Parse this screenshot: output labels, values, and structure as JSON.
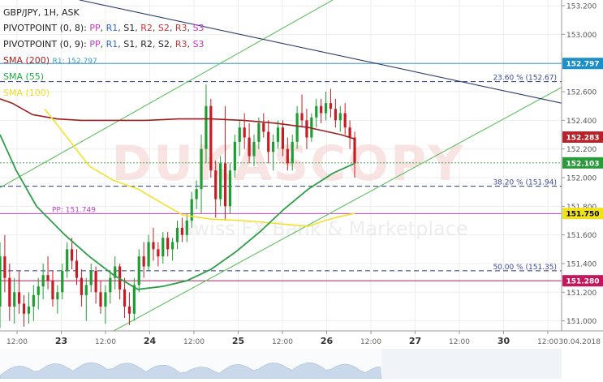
{
  "header": {
    "title": "GBP/JPY, 1H, ASK",
    "legend": [
      {
        "label": "PIVOTPOINT (0, 8):",
        "parts": [
          {
            "text": "PP",
            "color": "#cc33cc"
          },
          {
            "text": "R1",
            "color": "#3366cc"
          },
          {
            "text": "S1",
            "color": "#222222"
          },
          {
            "text": "R2",
            "color": "#cc3333"
          },
          {
            "text": "S2",
            "color": "#cc3333"
          },
          {
            "text": "R3",
            "color": "#cc3333"
          },
          {
            "text": "S3",
            "color": "#cc33cc"
          }
        ]
      },
      {
        "label": "PIVOTPOINT (0, 9):",
        "parts": [
          {
            "text": "PP",
            "color": "#cc33cc"
          },
          {
            "text": "R1",
            "color": "#3366cc"
          },
          {
            "text": "S1",
            "color": "#222222"
          },
          {
            "text": "R2",
            "color": "#222222"
          },
          {
            "text": "S2",
            "color": "#222222"
          },
          {
            "text": "R3",
            "color": "#cc3333"
          },
          {
            "text": "S3",
            "color": "#cc33cc"
          }
        ]
      }
    ],
    "sma200": {
      "text": "SMA (200)",
      "color": "#aa2222"
    },
    "r1_label": {
      "text": "R1: 152.797",
      "color": "#3399cc"
    },
    "sma55": {
      "text": "SMA (55)",
      "color": "#22aa44"
    },
    "sma100": {
      "text": "SMA (100)",
      "color": "#eedd22"
    }
  },
  "watermark": "DUKASCOPY",
  "watermark_sub": "Swiss FX Bank & Marketplace",
  "levels": {
    "fib_236": {
      "text": "23.60 % (152.67)",
      "value": 152.67
    },
    "fib_382": {
      "text": "38.20 % (151.94)",
      "value": 151.94
    },
    "fib_500": {
      "text": "50.00 % (151.35)",
      "value": 151.35
    },
    "pp": {
      "text": "PP: 151.749",
      "value": 151.749
    },
    "r1": {
      "value": 152.797
    }
  },
  "price_badges": [
    {
      "text": "152.797",
      "value": 152.797,
      "bg": "#1a8fc9"
    },
    {
      "text": "152.283",
      "value": 152.283,
      "bg": "#b5232b"
    },
    {
      "text": "152.103",
      "value": 152.103,
      "bg": "#2a9a3a"
    },
    {
      "text": "151.750",
      "value": 151.75,
      "bg": "#f0e11c",
      "fg": "#000000"
    },
    {
      "text": "151.280",
      "value": 151.28,
      "bg": "#c2185b"
    }
  ],
  "chart_data": {
    "type": "candlestick",
    "title": "GBP/JPY, 1H, ASK",
    "yticks": [
      "153.200",
      "153.000",
      "152.800",
      "152.600",
      "152.400",
      "152.200",
      "152.000",
      "151.800",
      "151.600",
      "151.400",
      "151.200",
      "151.000"
    ],
    "ylim": [
      150.93,
      153.24
    ],
    "xticks": [
      {
        "label": "12:00",
        "bold": false
      },
      {
        "label": "23",
        "bold": true
      },
      {
        "label": "12:00",
        "bold": false
      },
      {
        "label": "24",
        "bold": true
      },
      {
        "label": "12:00",
        "bold": false
      },
      {
        "label": "25",
        "bold": true
      },
      {
        "label": "12:00",
        "bold": false
      },
      {
        "label": "26",
        "bold": true
      },
      {
        "label": "12:00",
        "bold": false
      },
      {
        "label": "27",
        "bold": true
      },
      {
        "label": "12:00",
        "bold": false
      },
      {
        "label": "30",
        "bold": true
      },
      {
        "label": "12:00",
        "bold": false
      },
      {
        "label": "30.04.2018",
        "bold": false
      }
    ],
    "candles": [
      {
        "o": 151.1,
        "h": 151.55,
        "l": 150.95,
        "c": 151.45
      },
      {
        "o": 151.45,
        "h": 151.6,
        "l": 151.2,
        "c": 151.3
      },
      {
        "o": 151.3,
        "h": 151.4,
        "l": 151.0,
        "c": 151.1
      },
      {
        "o": 151.1,
        "h": 151.3,
        "l": 150.98,
        "c": 151.2
      },
      {
        "o": 151.2,
        "h": 151.35,
        "l": 151.05,
        "c": 151.12
      },
      {
        "o": 151.12,
        "h": 151.18,
        "l": 150.96,
        "c": 151.05
      },
      {
        "o": 151.05,
        "h": 151.2,
        "l": 150.98,
        "c": 151.1
      },
      {
        "o": 151.1,
        "h": 151.25,
        "l": 151.0,
        "c": 151.18
      },
      {
        "o": 151.18,
        "h": 151.3,
        "l": 151.08,
        "c": 151.24
      },
      {
        "o": 151.24,
        "h": 151.4,
        "l": 151.15,
        "c": 151.32
      },
      {
        "o": 151.32,
        "h": 151.45,
        "l": 151.22,
        "c": 151.28
      },
      {
        "o": 151.28,
        "h": 151.35,
        "l": 151.1,
        "c": 151.15
      },
      {
        "o": 151.15,
        "h": 151.25,
        "l": 151.05,
        "c": 151.2
      },
      {
        "o": 151.2,
        "h": 151.4,
        "l": 151.15,
        "c": 151.35
      },
      {
        "o": 151.35,
        "h": 151.55,
        "l": 151.3,
        "c": 151.5
      },
      {
        "o": 151.5,
        "h": 151.58,
        "l": 151.36,
        "c": 151.42
      },
      {
        "o": 151.42,
        "h": 151.5,
        "l": 151.25,
        "c": 151.3
      },
      {
        "o": 151.3,
        "h": 151.36,
        "l": 151.1,
        "c": 151.18
      },
      {
        "o": 151.18,
        "h": 151.3,
        "l": 151.0,
        "c": 151.25
      },
      {
        "o": 151.25,
        "h": 151.4,
        "l": 151.2,
        "c": 151.35
      },
      {
        "o": 151.35,
        "h": 151.38,
        "l": 151.12,
        "c": 151.2
      },
      {
        "o": 151.2,
        "h": 151.28,
        "l": 151.05,
        "c": 151.1
      },
      {
        "o": 151.1,
        "h": 151.25,
        "l": 150.98,
        "c": 151.2
      },
      {
        "o": 151.2,
        "h": 151.35,
        "l": 151.12,
        "c": 151.3
      },
      {
        "o": 151.3,
        "h": 151.45,
        "l": 151.22,
        "c": 151.38
      },
      {
        "o": 151.38,
        "h": 151.4,
        "l": 151.15,
        "c": 151.22
      },
      {
        "o": 151.22,
        "h": 151.3,
        "l": 151.02,
        "c": 151.1
      },
      {
        "o": 151.1,
        "h": 151.2,
        "l": 150.97,
        "c": 151.05
      },
      {
        "o": 151.05,
        "h": 151.3,
        "l": 151.0,
        "c": 151.25
      },
      {
        "o": 151.25,
        "h": 151.5,
        "l": 151.2,
        "c": 151.45
      },
      {
        "o": 151.45,
        "h": 151.55,
        "l": 151.3,
        "c": 151.38
      },
      {
        "o": 151.38,
        "h": 151.6,
        "l": 151.35,
        "c": 151.55
      },
      {
        "o": 151.55,
        "h": 151.65,
        "l": 151.42,
        "c": 151.5
      },
      {
        "o": 151.5,
        "h": 151.55,
        "l": 151.38,
        "c": 151.45
      },
      {
        "o": 151.45,
        "h": 151.62,
        "l": 151.4,
        "c": 151.58
      },
      {
        "o": 151.58,
        "h": 151.62,
        "l": 151.45,
        "c": 151.5
      },
      {
        "o": 151.5,
        "h": 151.58,
        "l": 151.42,
        "c": 151.55
      },
      {
        "o": 151.55,
        "h": 151.7,
        "l": 151.5,
        "c": 151.65
      },
      {
        "o": 151.65,
        "h": 151.72,
        "l": 151.55,
        "c": 151.6
      },
      {
        "o": 151.6,
        "h": 151.75,
        "l": 151.55,
        "c": 151.7
      },
      {
        "o": 151.7,
        "h": 151.9,
        "l": 151.65,
        "c": 151.85
      },
      {
        "o": 151.85,
        "h": 151.98,
        "l": 151.78,
        "c": 151.92
      },
      {
        "o": 151.92,
        "h": 152.3,
        "l": 151.75,
        "c": 152.2
      },
      {
        "o": 152.2,
        "h": 152.65,
        "l": 152.1,
        "c": 152.5
      },
      {
        "o": 152.5,
        "h": 152.55,
        "l": 152.0,
        "c": 152.05
      },
      {
        "o": 152.05,
        "h": 152.12,
        "l": 151.72,
        "c": 151.85
      },
      {
        "o": 151.85,
        "h": 152.15,
        "l": 151.8,
        "c": 152.1
      },
      {
        "o": 152.1,
        "h": 152.5,
        "l": 151.7,
        "c": 151.8
      },
      {
        "o": 151.8,
        "h": 152.1,
        "l": 151.75,
        "c": 152.05
      },
      {
        "o": 152.05,
        "h": 152.3,
        "l": 152.0,
        "c": 152.25
      },
      {
        "o": 152.25,
        "h": 152.4,
        "l": 152.15,
        "c": 152.35
      },
      {
        "o": 152.35,
        "h": 152.45,
        "l": 152.2,
        "c": 152.28
      },
      {
        "o": 152.28,
        "h": 152.38,
        "l": 152.1,
        "c": 152.15
      },
      {
        "o": 152.15,
        "h": 152.3,
        "l": 152.08,
        "c": 152.25
      },
      {
        "o": 152.25,
        "h": 152.42,
        "l": 152.2,
        "c": 152.38
      },
      {
        "o": 152.38,
        "h": 152.45,
        "l": 152.28,
        "c": 152.32
      },
      {
        "o": 152.32,
        "h": 152.4,
        "l": 152.1,
        "c": 152.18
      },
      {
        "o": 152.18,
        "h": 152.3,
        "l": 152.05,
        "c": 152.25
      },
      {
        "o": 152.25,
        "h": 152.4,
        "l": 152.2,
        "c": 152.35
      },
      {
        "o": 152.35,
        "h": 152.4,
        "l": 152.15,
        "c": 152.2
      },
      {
        "o": 152.2,
        "h": 152.28,
        "l": 152.05,
        "c": 152.1
      },
      {
        "o": 152.1,
        "h": 152.3,
        "l": 152.05,
        "c": 152.25
      },
      {
        "o": 152.25,
        "h": 152.5,
        "l": 152.2,
        "c": 152.45
      },
      {
        "o": 152.45,
        "h": 152.58,
        "l": 152.35,
        "c": 152.4
      },
      {
        "o": 152.4,
        "h": 152.48,
        "l": 152.2,
        "c": 152.28
      },
      {
        "o": 152.28,
        "h": 152.45,
        "l": 152.25,
        "c": 152.42
      },
      {
        "o": 152.42,
        "h": 152.55,
        "l": 152.35,
        "c": 152.5
      },
      {
        "o": 152.5,
        "h": 152.55,
        "l": 152.38,
        "c": 152.45
      },
      {
        "o": 152.45,
        "h": 152.6,
        "l": 152.4,
        "c": 152.52
      },
      {
        "o": 152.52,
        "h": 152.62,
        "l": 152.42,
        "c": 152.48
      },
      {
        "o": 152.48,
        "h": 152.55,
        "l": 152.35,
        "c": 152.4
      },
      {
        "o": 152.4,
        "h": 152.5,
        "l": 152.32,
        "c": 152.45
      },
      {
        "o": 152.45,
        "h": 152.52,
        "l": 152.3,
        "c": 152.35
      },
      {
        "o": 152.35,
        "h": 152.4,
        "l": 152.2,
        "c": 152.28
      },
      {
        "o": 152.28,
        "h": 152.32,
        "l": 152.0,
        "c": 152.1
      }
    ],
    "sma200": [
      [
        0,
        152.55
      ],
      [
        15,
        152.52
      ],
      [
        40,
        152.44
      ],
      [
        70,
        152.41
      ],
      [
        100,
        152.4
      ],
      [
        130,
        152.4
      ],
      [
        180,
        152.4
      ],
      [
        220,
        152.41
      ],
      [
        260,
        152.41
      ],
      [
        300,
        152.4
      ],
      [
        340,
        152.38
      ],
      [
        380,
        152.35
      ],
      [
        420,
        152.3
      ],
      [
        437,
        152.27
      ]
    ],
    "sma55": [
      [
        0,
        152.3
      ],
      [
        20,
        152.05
      ],
      [
        45,
        151.8
      ],
      [
        80,
        151.6
      ],
      [
        110,
        151.45
      ],
      [
        140,
        151.32
      ],
      [
        170,
        151.22
      ],
      [
        200,
        151.24
      ],
      [
        230,
        151.28
      ],
      [
        260,
        151.36
      ],
      [
        290,
        151.48
      ],
      [
        320,
        151.62
      ],
      [
        350,
        151.78
      ],
      [
        380,
        151.92
      ],
      [
        410,
        152.03
      ],
      [
        437,
        152.1
      ]
    ],
    "sma100": [
      [
        55,
        152.48
      ],
      [
        80,
        152.3
      ],
      [
        110,
        152.08
      ],
      [
        140,
        151.98
      ],
      [
        170,
        151.92
      ],
      [
        200,
        151.82
      ],
      [
        225,
        151.74
      ],
      [
        260,
        151.71
      ],
      [
        300,
        151.7
      ],
      [
        340,
        151.68
      ],
      [
        380,
        151.66
      ],
      [
        400,
        151.7
      ],
      [
        420,
        151.73
      ],
      [
        437,
        151.75
      ]
    ],
    "trendlines": [
      {
        "color": "#5fbf5f",
        "points": [
          [
            0,
            151.93
          ],
          [
            410,
            153.24
          ]
        ]
      },
      {
        "color": "#5fbf5f",
        "points": [
          [
            140,
            150.93
          ],
          [
            692,
            152.63
          ]
        ]
      },
      {
        "color": "#2e3a6e",
        "points": [
          [
            98,
            153.24
          ],
          [
            692,
            152.52
          ]
        ]
      }
    ]
  }
}
